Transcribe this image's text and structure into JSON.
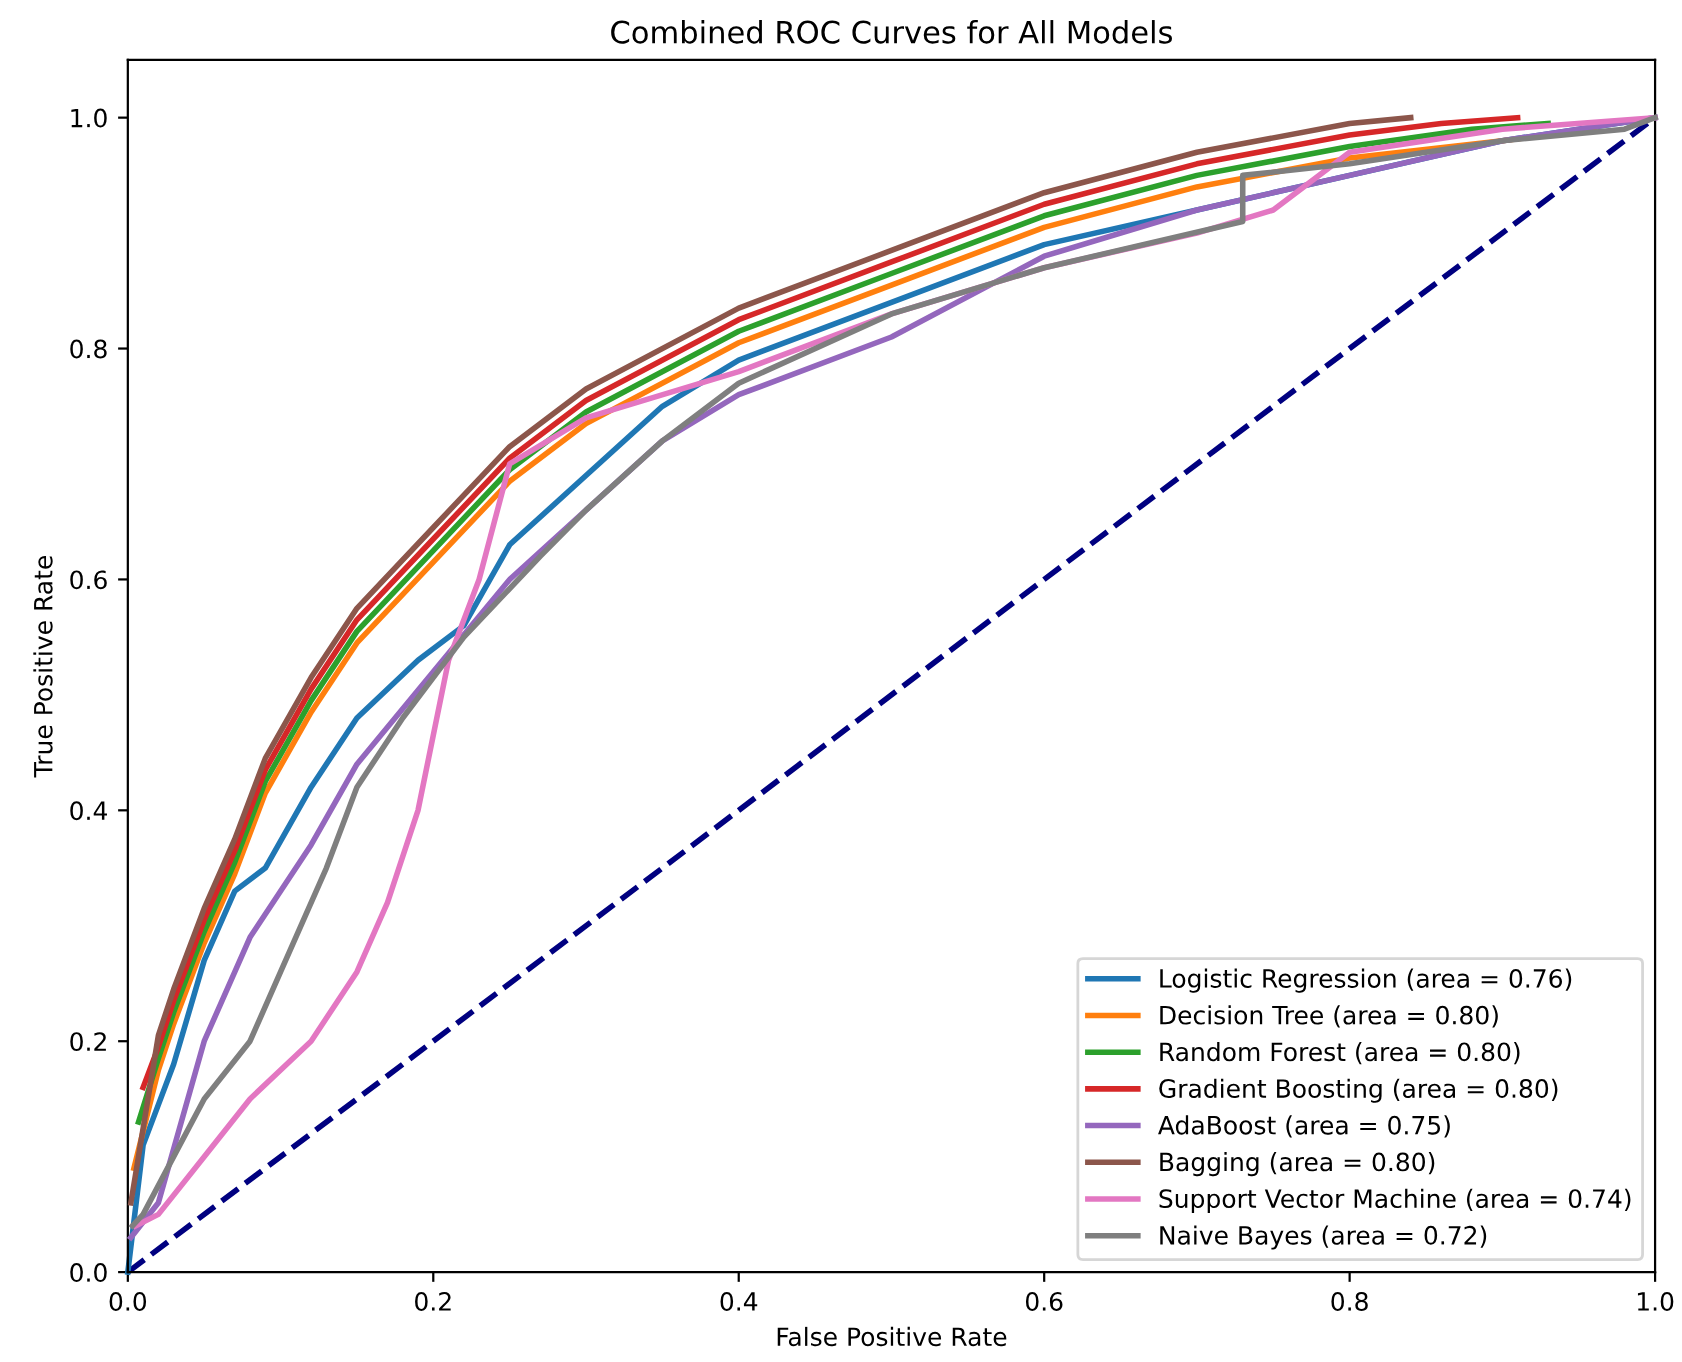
{
  "chart_data": {
    "type": "line",
    "title": "Combined ROC Curves for All Models",
    "xlabel": "False Positive Rate",
    "ylabel": "True Positive Rate",
    "xlim": [
      0,
      1
    ],
    "ylim": [
      0,
      1.05
    ],
    "xticks": [
      {
        "value": 0,
        "label": "0.0"
      },
      {
        "value": 0.2,
        "label": "0.2"
      },
      {
        "value": 0.4,
        "label": "0.4"
      },
      {
        "value": 0.6,
        "label": "0.6"
      },
      {
        "value": 0.8,
        "label": "0.8"
      },
      {
        "value": 1,
        "label": "1.0"
      }
    ],
    "yticks": [
      {
        "value": 0,
        "label": "0.0"
      },
      {
        "value": 0.2,
        "label": "0.2"
      },
      {
        "value": 0.4,
        "label": "0.4"
      },
      {
        "value": 0.6,
        "label": "0.6"
      },
      {
        "value": 0.8,
        "label": "0.8"
      },
      {
        "value": 1,
        "label": "1.0"
      }
    ],
    "legend": "bottom right",
    "grid": false,
    "series": [
      {
        "name": "Logistic Regression (area = 0.76)",
        "color": "#1f77b4",
        "x": [
          0,
          0.01,
          0.03,
          0.05,
          0.07,
          0.09,
          0.12,
          0.15,
          0.19,
          0.22,
          0.25,
          0.3,
          0.35,
          0.4,
          0.5,
          0.6,
          0.7,
          0.8,
          0.9,
          1
        ],
        "values": [
          0,
          0.11,
          0.18,
          0.27,
          0.33,
          0.35,
          0.42,
          0.48,
          0.53,
          0.56,
          0.63,
          0.69,
          0.75,
          0.79,
          0.84,
          0.89,
          0.92,
          0.95,
          0.98,
          1
        ]
      },
      {
        "name": "Decision Tree (area = 0.80)",
        "color": "#ff7f0e",
        "x": [
          0.004,
          0.02,
          0.03,
          0.05,
          0.07,
          0.09,
          0.12,
          0.15,
          0.2,
          0.25,
          0.3,
          0.4,
          0.5,
          0.6,
          0.7,
          0.8,
          0.9,
          0.96
        ],
        "values": [
          0.09,
          0.175,
          0.215,
          0.285,
          0.345,
          0.415,
          0.485,
          0.545,
          0.615,
          0.685,
          0.735,
          0.805,
          0.855,
          0.905,
          0.94,
          0.965,
          0.98,
          0.99
        ]
      },
      {
        "name": "Random Forest (area = 0.80)",
        "color": "#2ca02c",
        "x": [
          0.007,
          0.02,
          0.03,
          0.05,
          0.07,
          0.09,
          0.12,
          0.15,
          0.2,
          0.25,
          0.3,
          0.4,
          0.5,
          0.6,
          0.7,
          0.8,
          0.88,
          0.93
        ],
        "values": [
          0.13,
          0.185,
          0.225,
          0.295,
          0.355,
          0.425,
          0.495,
          0.555,
          0.625,
          0.695,
          0.745,
          0.815,
          0.865,
          0.915,
          0.95,
          0.975,
          0.99,
          0.995
        ]
      },
      {
        "name": "Gradient Boosting (area = 0.80)",
        "color": "#d62728",
        "x": [
          0.01,
          0.02,
          0.03,
          0.05,
          0.07,
          0.09,
          0.12,
          0.15,
          0.2,
          0.25,
          0.3,
          0.4,
          0.5,
          0.6,
          0.7,
          0.8,
          0.86,
          0.91
        ],
        "values": [
          0.16,
          0.195,
          0.235,
          0.305,
          0.365,
          0.435,
          0.505,
          0.565,
          0.635,
          0.705,
          0.755,
          0.825,
          0.875,
          0.925,
          0.96,
          0.985,
          0.995,
          1
        ]
      },
      {
        "name": "AdaBoost (area = 0.75)",
        "color": "#9467bd",
        "x": [
          0.002,
          0.02,
          0.05,
          0.08,
          0.12,
          0.15,
          0.2,
          0.25,
          0.3,
          0.35,
          0.4,
          0.5,
          0.6,
          0.7,
          0.8,
          0.9,
          1
        ],
        "values": [
          0.03,
          0.06,
          0.2,
          0.29,
          0.37,
          0.44,
          0.52,
          0.6,
          0.66,
          0.72,
          0.76,
          0.81,
          0.88,
          0.92,
          0.95,
          0.98,
          1
        ]
      },
      {
        "name": "Bagging (area = 0.80)",
        "color": "#8c564b",
        "x": [
          0.002,
          0.02,
          0.03,
          0.05,
          0.07,
          0.09,
          0.12,
          0.15,
          0.2,
          0.25,
          0.3,
          0.4,
          0.5,
          0.6,
          0.7,
          0.8,
          0.84
        ],
        "values": [
          0.06,
          0.205,
          0.245,
          0.315,
          0.375,
          0.445,
          0.515,
          0.575,
          0.645,
          0.715,
          0.765,
          0.835,
          0.885,
          0.935,
          0.97,
          0.995,
          1
        ]
      },
      {
        "name": "Support Vector Machine (area = 0.74)",
        "color": "#e377c2",
        "x": [
          0.005,
          0.02,
          0.05,
          0.08,
          0.12,
          0.15,
          0.17,
          0.19,
          0.21,
          0.23,
          0.25,
          0.3,
          0.4,
          0.5,
          0.6,
          0.7,
          0.75,
          0.8,
          0.9,
          1
        ],
        "values": [
          0.04,
          0.05,
          0.1,
          0.15,
          0.2,
          0.26,
          0.32,
          0.4,
          0.53,
          0.6,
          0.7,
          0.74,
          0.78,
          0.83,
          0.87,
          0.9,
          0.92,
          0.97,
          0.99,
          1
        ]
      },
      {
        "name": "Naive Bayes (area = 0.72)",
        "color": "#7f7f7f",
        "x": [
          0.003,
          0.01,
          0.03,
          0.05,
          0.08,
          0.1,
          0.13,
          0.15,
          0.18,
          0.22,
          0.27,
          0.3,
          0.35,
          0.4,
          0.5,
          0.6,
          0.73,
          0.73,
          0.8,
          0.9,
          0.98,
          1
        ],
        "values": [
          0.04,
          0.05,
          0.1,
          0.15,
          0.2,
          0.26,
          0.35,
          0.42,
          0.48,
          0.55,
          0.62,
          0.66,
          0.72,
          0.77,
          0.83,
          0.87,
          0.91,
          0.95,
          0.96,
          0.98,
          0.99,
          1
        ]
      },
      {
        "color": "#000080",
        "line_style": "dashed",
        "x": [
          0,
          1
        ],
        "values": [
          0,
          1
        ]
      }
    ]
  }
}
